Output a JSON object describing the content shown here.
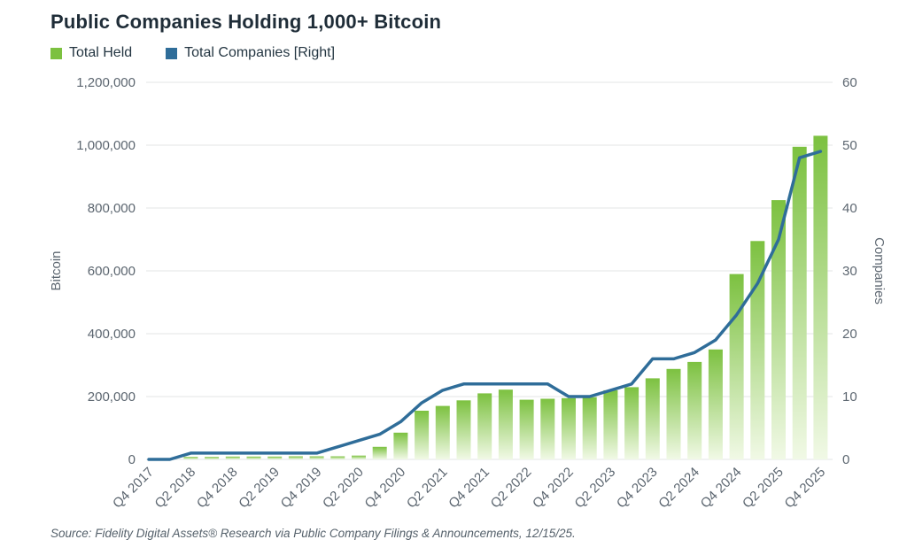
{
  "title": "Public Companies Holding 1,000+ Bitcoin",
  "legend": [
    {
      "label": "Total Held",
      "color": "#7cc140"
    },
    {
      "label": "Total Companies [Right]",
      "color": "#2f6d99"
    }
  ],
  "source_note": "Source: Fidelity Digital Assets® Research via Public Company Filings & Announcements, 12/15/25.",
  "colors": {
    "bar_top": "#7cc140",
    "bar_bottom": "#f1f9e6",
    "line": "#2f6d99",
    "axis_text": "#5c6670",
    "gridline": "#e3e4e5",
    "title_text": "#1f2d38"
  },
  "chart_data": {
    "type": "bar+line",
    "title": "Public Companies Holding 1,000+ Bitcoin",
    "legend_position": "top-left",
    "grid": "horizontal",
    "categories": [
      "Q4 2017",
      "Q1 2018",
      "Q2 2018",
      "Q3 2018",
      "Q4 2018",
      "Q1 2019",
      "Q2 2019",
      "Q3 2019",
      "Q4 2019",
      "Q1 2020",
      "Q2 2020",
      "Q3 2020",
      "Q4 2020",
      "Q1 2021",
      "Q2 2021",
      "Q3 2021",
      "Q4 2021",
      "Q1 2022",
      "Q2 2022",
      "Q3 2022",
      "Q4 2022",
      "Q1 2023",
      "Q2 2023",
      "Q3 2023",
      "Q4 2023",
      "Q1 2024",
      "Q2 2024",
      "Q3 2024",
      "Q4 2024",
      "Q1 2025",
      "Q2 2025",
      "Q3 2025",
      "Q4 2025"
    ],
    "x_tick_labels_shown": [
      "Q4 2017",
      "Q2 2018",
      "Q4 2018",
      "Q2 2019",
      "Q4 2019",
      "Q2 2020",
      "Q4 2020",
      "Q2 2021",
      "Q4 2021",
      "Q2 2022",
      "Q4 2022",
      "Q2 2023",
      "Q4 2023",
      "Q2 2024",
      "Q4 2024",
      "Q2 2025",
      "Q4 2025"
    ],
    "series": [
      {
        "name": "Total Held",
        "type": "bar",
        "axis": "left",
        "values": [
          0,
          0,
          8000,
          8000,
          9000,
          9000,
          9000,
          10000,
          10000,
          10000,
          12000,
          40000,
          85000,
          155000,
          170000,
          188000,
          210000,
          222000,
          190000,
          193000,
          195000,
          198000,
          220000,
          230000,
          258000,
          288000,
          310000,
          350000,
          590000,
          695000,
          825000,
          995000,
          1030000
        ]
      },
      {
        "name": "Total Companies [Right]",
        "type": "line",
        "axis": "right",
        "values": [
          0,
          0,
          1,
          1,
          1,
          1,
          1,
          1,
          1,
          2,
          3,
          4,
          6,
          9,
          11,
          12,
          12,
          12,
          12,
          12,
          10,
          10,
          11,
          12,
          16,
          16,
          17,
          19,
          23,
          28,
          35,
          48,
          49
        ]
      }
    ],
    "left_axis": {
      "title": "Bitcoin",
      "min": 0,
      "max": 1200000,
      "tick_values": [
        0,
        200000,
        400000,
        600000,
        800000,
        1000000,
        1200000
      ],
      "tick_labels": [
        "0",
        "200,000",
        "400,000",
        "600,000",
        "800,000",
        "1,000,000",
        "1,200,000"
      ]
    },
    "right_axis": {
      "title": "Companies",
      "min": 0,
      "max": 60,
      "tick_values": [
        0,
        10,
        20,
        30,
        40,
        50,
        60
      ],
      "tick_labels": [
        "0",
        "10",
        "20",
        "30",
        "40",
        "50",
        "60"
      ]
    }
  }
}
